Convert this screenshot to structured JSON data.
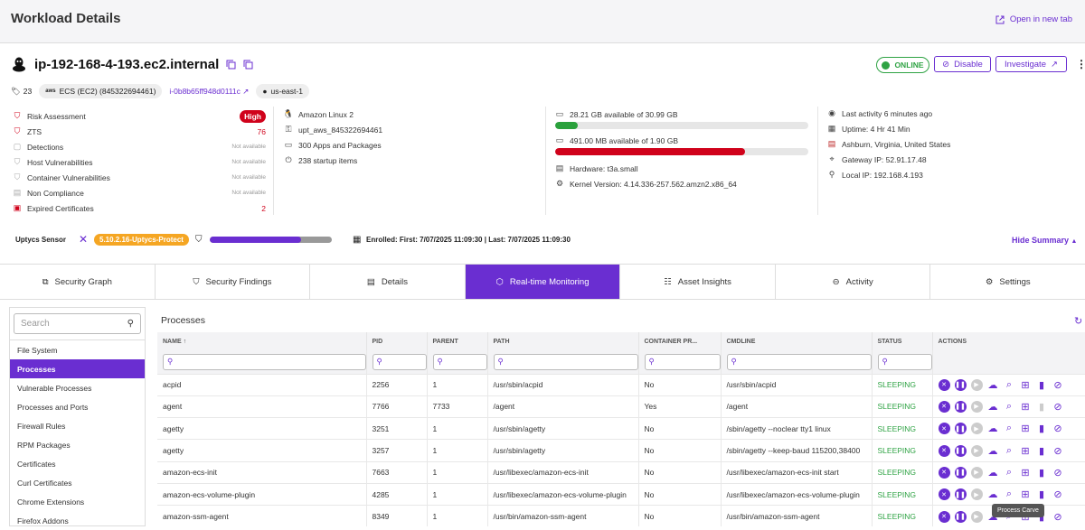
{
  "header": {
    "title": "Workload Details",
    "open_new_tab": "Open in new tab"
  },
  "host": {
    "name": "ip-192-168-4-193.ec2.internal",
    "status": "ONLINE",
    "disable": "Disable",
    "investigate": "Investigate"
  },
  "tags": {
    "count": "23",
    "cloud": "ECS (EC2) (845322694461)",
    "cloud_badge": "aws",
    "instance": "i-0b8b65ff948d0111c",
    "region": "us-east-1"
  },
  "risk": [
    {
      "label": "Risk Assessment",
      "value": "High",
      "icon": "shield-icon"
    },
    {
      "label": "ZTS",
      "value": "76",
      "icon": "shield-icon"
    },
    {
      "label": "Detections",
      "value": "Not available",
      "icon": "detection-icon"
    },
    {
      "label": "Host Vulnerabilities",
      "value": "Not available",
      "icon": "shield-icon"
    },
    {
      "label": "Container Vulnerabilities",
      "value": "Not available",
      "icon": "shield-icon"
    },
    {
      "label": "Non Compliance",
      "value": "Not available",
      "icon": "compliance-icon"
    },
    {
      "label": "Expired Certificates",
      "value": "2",
      "icon": "certificate-icon"
    }
  ],
  "system": [
    {
      "label": "Amazon Linux 2",
      "icon": "linux-icon"
    },
    {
      "label": "upt_aws_845322694461",
      "icon": "key-icon"
    },
    {
      "label": "300 Apps and Packages",
      "icon": "apps-icon"
    },
    {
      "label": "238 startup items",
      "icon": "power-icon"
    }
  ],
  "storage": {
    "disk_label": "28.21 GB available of 30.99 GB",
    "disk_used": 0.09,
    "disk_color": "#2aa13c",
    "mem_label": "491.00 MB available of 1.90 GB",
    "mem_used": 0.75,
    "mem_color": "#d0021b",
    "hardware": "Hardware: t3a.small",
    "kernel": "Kernel Version: 4.14.336-257.562.amzn2.x86_64"
  },
  "activity": [
    {
      "label": "Last activity 6 minutes ago",
      "icon": "eye-icon"
    },
    {
      "label": "Uptime: 4 Hr 41 Min",
      "icon": "calendar-icon"
    },
    {
      "label": "Ashburn, Virginia, United States",
      "icon": "flag-icon"
    },
    {
      "label": "Gateway IP: 52.91.17.48",
      "icon": "gateway-icon"
    },
    {
      "label": "Local IP: 192.168.4.193",
      "icon": "pin-icon"
    }
  ],
  "sensor": {
    "label": "Uptycs Sensor",
    "version": "5.10.2.16-Uptycs-Protect",
    "progress": 0.75,
    "enrolled": "Enrolled: First: 7/07/2025 11:09:30 | Last: 7/07/2025 11:09:30",
    "hide": "Hide Summary"
  },
  "tabs": [
    {
      "label": "Security Graph",
      "icon": "graph-icon"
    },
    {
      "label": "Security Findings",
      "icon": "shield-icon"
    },
    {
      "label": "Details",
      "icon": "document-icon"
    },
    {
      "label": "Real-time Monitoring",
      "icon": "cube-icon"
    },
    {
      "label": "Asset Insights",
      "icon": "insights-icon"
    },
    {
      "label": "Activity",
      "icon": "activity-icon"
    },
    {
      "label": "Settings",
      "icon": "settings-icon"
    }
  ],
  "sidebar": {
    "search_placeholder": "Search",
    "items": [
      "File System",
      "Processes",
      "Vulnerable Processes",
      "Processes and Ports",
      "Firewall Rules",
      "RPM Packages",
      "Certificates",
      "Curl Certificates",
      "Chrome Extensions",
      "Firefox Addons"
    ]
  },
  "processes": {
    "title": "Processes",
    "columns": [
      "NAME",
      "PID",
      "PARENT",
      "PATH",
      "CONTAINER PR...",
      "CMDLINE",
      "STATUS",
      "ACTIONS"
    ],
    "rows": [
      [
        "acpid",
        "2256",
        "1",
        "/usr/sbin/acpid",
        "No",
        "/usr/sbin/acpid",
        "SLEEPING"
      ],
      [
        "agent",
        "7766",
        "7733",
        "/agent",
        "Yes",
        "/agent",
        "SLEEPING"
      ],
      [
        "agetty",
        "3251",
        "1",
        "/usr/sbin/agetty",
        "No",
        "/sbin/agetty --noclear tty1 linux",
        "SLEEPING"
      ],
      [
        "agetty",
        "3257",
        "1",
        "/usr/sbin/agetty",
        "No",
        "/sbin/agetty --keep-baud 115200,38400",
        "SLEEPING"
      ],
      [
        "amazon-ecs-init",
        "7663",
        "1",
        "/usr/libexec/amazon-ecs-init",
        "No",
        "/usr/libexec/amazon-ecs-init start",
        "SLEEPING"
      ],
      [
        "amazon-ecs-volume-plugin",
        "4285",
        "1",
        "/usr/libexec/amazon-ecs-volume-plugin",
        "No",
        "/usr/libexec/amazon-ecs-volume-plugin",
        "SLEEPING"
      ],
      [
        "amazon-ssm-agent",
        "8349",
        "1",
        "/usr/bin/amazon-ssm-agent",
        "No",
        "/usr/bin/amazon-ssm-agent",
        "SLEEPING"
      ]
    ],
    "tooltip": "Process Carve"
  }
}
